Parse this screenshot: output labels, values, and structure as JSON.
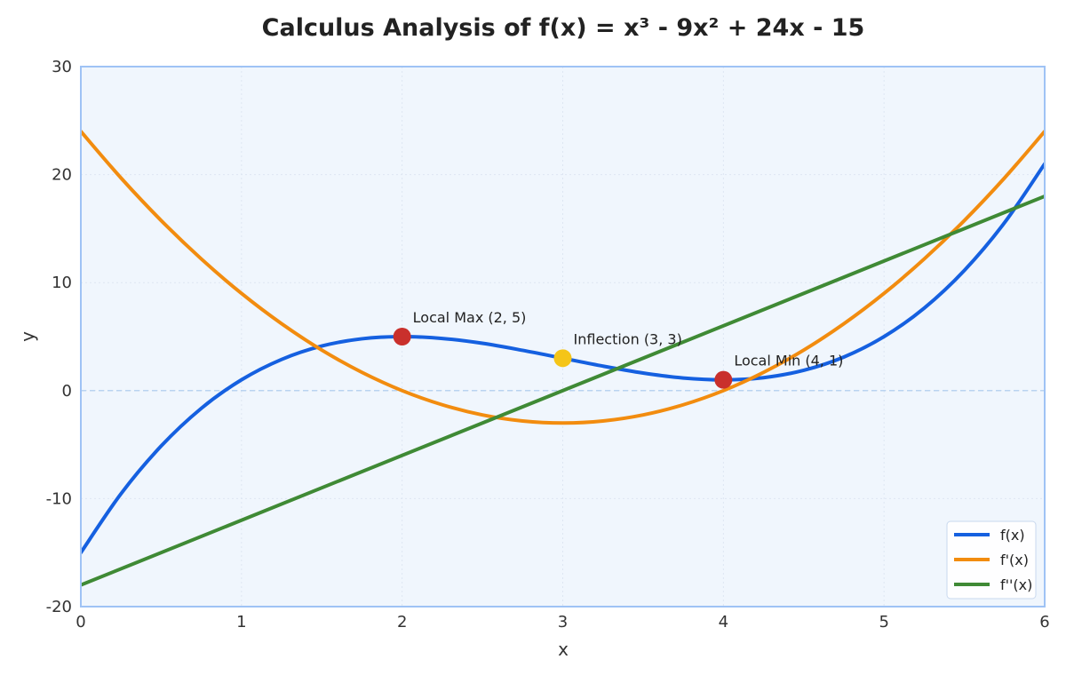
{
  "chart_data": {
    "type": "line",
    "title": "Calculus Analysis of f(x) = x³ - 9x² + 24x - 15",
    "xlabel": "x",
    "ylabel": "y",
    "xlim": [
      0,
      6
    ],
    "ylim": [
      -20,
      30
    ],
    "xticks": [
      0,
      1,
      2,
      3,
      4,
      5,
      6
    ],
    "yticks": [
      -20,
      -10,
      0,
      10,
      20,
      30
    ],
    "grid": true,
    "legend_position": "bottom-right",
    "colors": {
      "plot_background": "#f0f6fd",
      "plot_border": "#9fc3f5",
      "grid": "#dde6f2",
      "zero_line": "#b9d3f0"
    },
    "series": [
      {
        "name": "f(x)",
        "color": "#1560e0",
        "x": [
          0,
          0.25,
          0.5,
          0.75,
          1,
          1.25,
          1.5,
          1.75,
          2,
          2.25,
          2.5,
          2.75,
          3,
          3.25,
          3.5,
          3.75,
          4,
          4.25,
          4.5,
          4.75,
          5,
          5.25,
          5.5,
          5.75,
          6
        ],
        "y": [
          -15,
          -9.55,
          -5.13,
          -1.64,
          1,
          2.89,
          4.13,
          4.8,
          5,
          4.83,
          4.38,
          3.73,
          3,
          2.27,
          1.63,
          1.17,
          1,
          1.2,
          1.88,
          3.11,
          5,
          7.64,
          11.13,
          15.55,
          21
        ]
      },
      {
        "name": "f'(x)",
        "color": "#f28c0f",
        "x": [
          0,
          0.25,
          0.5,
          0.75,
          1,
          1.25,
          1.5,
          1.75,
          2,
          2.25,
          2.5,
          2.75,
          3,
          3.25,
          3.5,
          3.75,
          4,
          4.25,
          4.5,
          4.75,
          5,
          5.25,
          5.5,
          5.75,
          6
        ],
        "y": [
          24,
          19.69,
          15.75,
          12.19,
          9,
          6.19,
          3.75,
          1.69,
          0,
          -1.31,
          -2.25,
          -2.81,
          -3,
          -2.81,
          -2.25,
          -1.31,
          0,
          1.69,
          3.75,
          6.19,
          9,
          12.19,
          15.75,
          19.69,
          24
        ]
      },
      {
        "name": "f''(x)",
        "color": "#3f8a35",
        "x": [
          0,
          6
        ],
        "y": [
          -18,
          18
        ]
      }
    ],
    "points": [
      {
        "label": "Local Max (2, 5)",
        "x": 2,
        "y": 5,
        "color": "#c9302c"
      },
      {
        "label": "Inflection (3, 3)",
        "x": 3,
        "y": 3,
        "color": "#f5c518"
      },
      {
        "label": "Local Min (4, 1)",
        "x": 4,
        "y": 1,
        "color": "#c9302c"
      }
    ]
  }
}
